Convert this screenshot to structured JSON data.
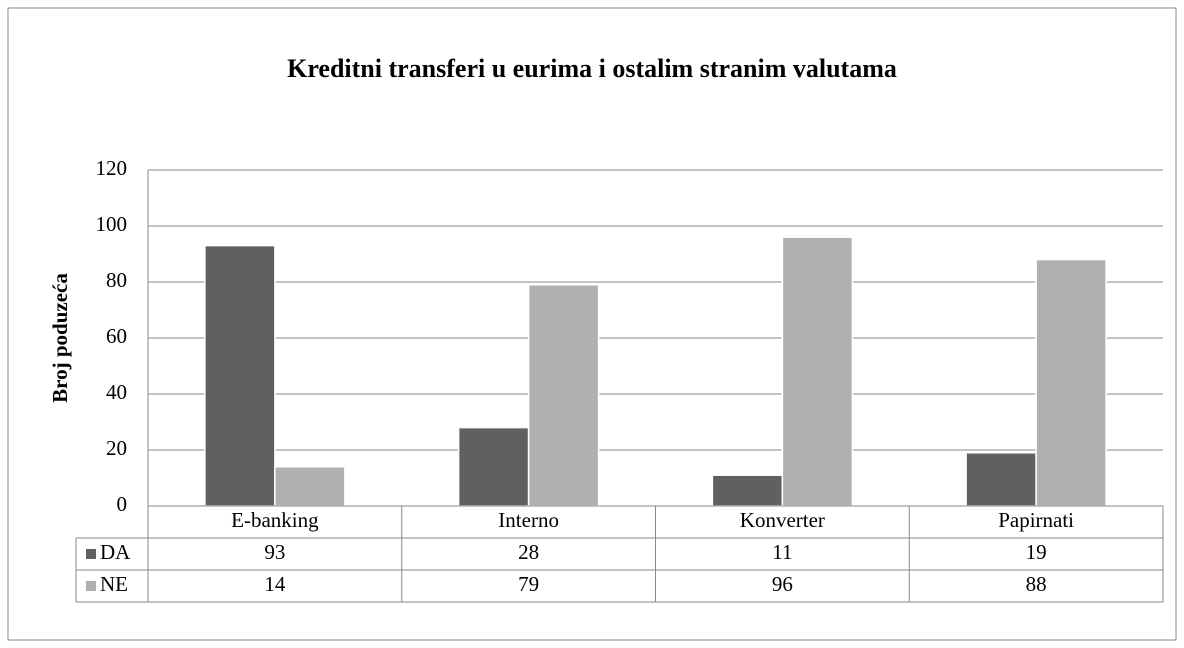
{
  "chart_data": {
    "type": "bar",
    "title": "Kreditni transferi u eurima i ostalim stranim valutama",
    "ylabel": "Broj poduzeća",
    "categories": [
      "E-banking",
      "Interno",
      "Konverter",
      "Papirnati"
    ],
    "series": [
      {
        "name": "DA",
        "color": "#606060",
        "values": [
          93,
          28,
          11,
          19
        ]
      },
      {
        "name": "NE",
        "color": "#b0b0b0",
        "values": [
          14,
          79,
          96,
          88
        ]
      }
    ],
    "ylim": [
      0,
      120
    ],
    "yticks": [
      0,
      20,
      40,
      60,
      80,
      100,
      120
    ],
    "grid": true,
    "data_table": true
  }
}
